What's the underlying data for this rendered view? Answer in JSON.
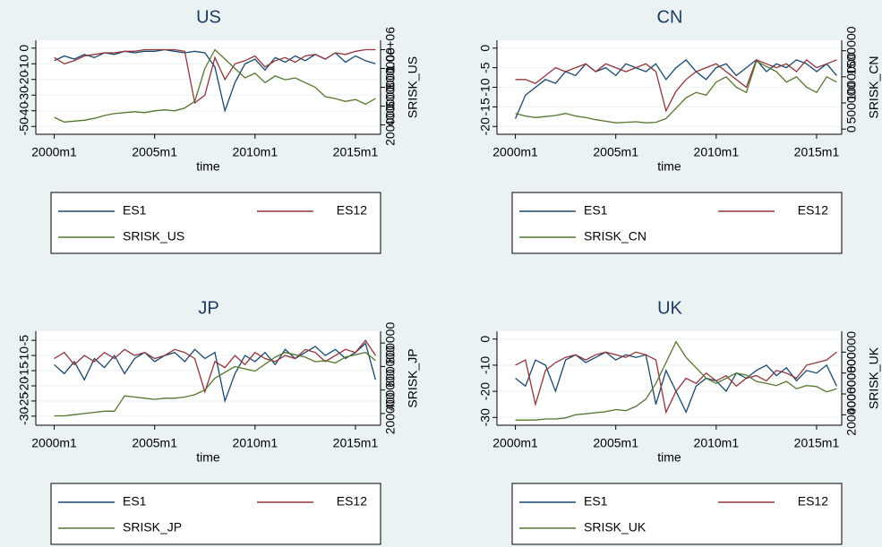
{
  "chart_data": [
    {
      "type": "line",
      "title": "US",
      "xlabel": "time",
      "y2label": "SRISK_US",
      "grid": true,
      "x": [
        "2000m1",
        "2000m7",
        "2001m1",
        "2001m7",
        "2002m1",
        "2002m7",
        "2003m1",
        "2003m7",
        "2004m1",
        "2004m7",
        "2005m1",
        "2005m7",
        "2006m1",
        "2006m7",
        "2007m1",
        "2007m7",
        "2008m1",
        "2008m7",
        "2009m1",
        "2009m7",
        "2010m1",
        "2010m7",
        "2011m1",
        "2011m7",
        "2012m1",
        "2012m7",
        "2013m1",
        "2013m7",
        "2014m1",
        "2014m7",
        "2015m1",
        "2015m7",
        "2016m1"
      ],
      "xticks": [
        "2000m1",
        "2005m1",
        "2010m1",
        "2015m1"
      ],
      "ylim": [
        -55,
        5
      ],
      "yticks": [
        -50,
        -40,
        -30,
        -20,
        -10,
        0
      ],
      "y2lim": [
        100000,
        1100000
      ],
      "y2ticks": [
        200000,
        400000,
        600000,
        800000,
        {
          "value": 1000000,
          "label": "1.0e+06"
        }
      ],
      "series": [
        {
          "name": "ES1",
          "color": "#1a476f",
          "values": [
            -8,
            -5,
            -7,
            -4,
            -6,
            -3,
            -4,
            -2,
            -3,
            -2,
            -2,
            -1,
            -2,
            -3,
            -2,
            -3,
            -12,
            -40,
            -22,
            -10,
            -7,
            -14,
            -6,
            -9,
            -5,
            -8,
            -4,
            -7,
            -3,
            -9,
            -5,
            -8,
            -10
          ]
        },
        {
          "name": "ES12",
          "color": "#90353b",
          "values": [
            -6,
            -10,
            -8,
            -5,
            -4,
            -3,
            -3,
            -2,
            -2,
            -1,
            -1,
            -1,
            -1,
            -2,
            -35,
            -30,
            -6,
            -20,
            -10,
            -8,
            -5,
            -12,
            -8,
            -6,
            -9,
            -5,
            -4,
            -7,
            -3,
            -4,
            -2,
            -1,
            -1
          ]
        },
        {
          "name": "SRISK_US",
          "color": "#55752f",
          "axis": "y2",
          "values": [
            280000,
            230000,
            240000,
            250000,
            270000,
            300000,
            320000,
            330000,
            340000,
            330000,
            350000,
            360000,
            350000,
            380000,
            450000,
            800000,
            1000000,
            900000,
            800000,
            700000,
            750000,
            650000,
            720000,
            680000,
            700000,
            650000,
            600000,
            500000,
            480000,
            450000,
            470000,
            420000,
            480000
          ]
        }
      ]
    },
    {
      "type": "line",
      "title": "CN",
      "xlabel": "time",
      "y2label": "SRISK_CN",
      "grid": true,
      "x": [
        "2000m1",
        "2000m7",
        "2001m1",
        "2001m7",
        "2002m1",
        "2002m7",
        "2003m1",
        "2003m7",
        "2004m1",
        "2004m7",
        "2005m1",
        "2005m7",
        "2006m1",
        "2006m7",
        "2007m1",
        "2007m7",
        "2008m1",
        "2008m7",
        "2009m1",
        "2009m7",
        "2010m1",
        "2010m7",
        "2011m1",
        "2011m7",
        "2012m1",
        "2012m7",
        "2013m1",
        "2013m7",
        "2014m1",
        "2014m7",
        "2015m1",
        "2015m7",
        "2016m1"
      ],
      "xticks": [
        "2000m1",
        "2005m1",
        "2010m1",
        "2015m1"
      ],
      "ylim": [
        -22,
        2
      ],
      "yticks": [
        -20,
        -15,
        -10,
        -5,
        0
      ],
      "y2lim": [
        -100000,
        1700000
      ],
      "y2ticks": [
        0,
        500000,
        1000000,
        1500000
      ],
      "series": [
        {
          "name": "ES1",
          "color": "#1a476f",
          "values": [
            -18,
            -12,
            -10,
            -8,
            -9,
            -6,
            -7,
            -4,
            -6,
            -5,
            -7,
            -4,
            -5,
            -6,
            -4,
            -8,
            -5,
            -3,
            -6,
            -8,
            -5,
            -4,
            -7,
            -5,
            -3,
            -6,
            -4,
            -5,
            -3,
            -4,
            -6,
            -4,
            -7
          ]
        },
        {
          "name": "ES12",
          "color": "#90353b",
          "values": [
            -8,
            -8,
            -9,
            -7,
            -5,
            -6,
            -5,
            -4,
            -6,
            -4,
            -5,
            -6,
            -5,
            -4,
            -6,
            -16,
            -11,
            -8,
            -6,
            -5,
            -4,
            -6,
            -8,
            -10,
            -3,
            -4,
            -5,
            -4,
            -6,
            -3,
            -5,
            -4,
            -3
          ]
        },
        {
          "name": "SRISK_CN",
          "color": "#55752f",
          "axis": "y2",
          "values": [
            300000,
            250000,
            220000,
            240000,
            260000,
            300000,
            250000,
            220000,
            180000,
            150000,
            120000,
            130000,
            140000,
            120000,
            130000,
            200000,
            400000,
            600000,
            700000,
            650000,
            900000,
            1000000,
            800000,
            700000,
            1300000,
            1200000,
            1100000,
            900000,
            1000000,
            800000,
            700000,
            1000000,
            900000
          ]
        }
      ]
    },
    {
      "type": "line",
      "title": "JP",
      "xlabel": "time",
      "y2label": "SRISK_JP",
      "grid": true,
      "x": [
        "2000m1",
        "2000m7",
        "2001m1",
        "2001m7",
        "2002m1",
        "2002m7",
        "2003m1",
        "2003m7",
        "2004m1",
        "2004m7",
        "2005m1",
        "2005m7",
        "2006m1",
        "2006m7",
        "2007m1",
        "2007m7",
        "2008m1",
        "2008m7",
        "2009m1",
        "2009m7",
        "2010m1",
        "2010m7",
        "2011m1",
        "2011m7",
        "2012m1",
        "2012m7",
        "2013m1",
        "2013m7",
        "2014m1",
        "2014m7",
        "2015m1",
        "2015m7",
        "2016m1"
      ],
      "xticks": [
        "2000m1",
        "2005m1",
        "2010m1",
        "2015m1"
      ],
      "ylim": [
        -33,
        -2
      ],
      "yticks": [
        -30,
        -25,
        -20,
        -15,
        -10,
        -5
      ],
      "y2lim": [
        100000,
        900000
      ],
      "y2ticks": [
        200000,
        400000,
        600000,
        800000
      ],
      "series": [
        {
          "name": "ES1",
          "color": "#1a476f",
          "values": [
            -13,
            -16,
            -12,
            -18,
            -11,
            -14,
            -10,
            -16,
            -11,
            -9,
            -12,
            -10,
            -9,
            -12,
            -8,
            -11,
            -9,
            -25,
            -16,
            -10,
            -12,
            -9,
            -13,
            -8,
            -11,
            -9,
            -7,
            -10,
            -8,
            -11,
            -9,
            -6,
            -18
          ]
        },
        {
          "name": "ES12",
          "color": "#90353b",
          "values": [
            -11,
            -9,
            -13,
            -10,
            -12,
            -9,
            -11,
            -8,
            -10,
            -9,
            -11,
            -10,
            -8,
            -9,
            -11,
            -22,
            -12,
            -14,
            -10,
            -13,
            -9,
            -11,
            -12,
            -10,
            -11,
            -8,
            -9,
            -12,
            -10,
            -8,
            -9,
            -5,
            -10
          ]
        },
        {
          "name": "SRISK_JP",
          "color": "#55752f",
          "axis": "y2",
          "values": [
            180000,
            180000,
            190000,
            200000,
            210000,
            220000,
            220000,
            350000,
            340000,
            330000,
            320000,
            330000,
            330000,
            340000,
            360000,
            400000,
            500000,
            550000,
            600000,
            580000,
            560000,
            620000,
            680000,
            720000,
            700000,
            680000,
            640000,
            650000,
            630000,
            680000,
            700000,
            720000,
            650000
          ]
        }
      ]
    },
    {
      "type": "line",
      "title": "UK",
      "xlabel": "time",
      "y2label": "SRISK_UK",
      "grid": true,
      "x": [
        "2000m1",
        "2000m7",
        "2001m1",
        "2001m7",
        "2002m1",
        "2002m7",
        "2003m1",
        "2003m7",
        "2004m1",
        "2004m7",
        "2005m1",
        "2005m7",
        "2006m1",
        "2006m7",
        "2007m1",
        "2007m7",
        "2008m1",
        "2008m7",
        "2009m1",
        "2009m7",
        "2010m1",
        "2010m7",
        "2011m1",
        "2011m7",
        "2012m1",
        "2012m7",
        "2013m1",
        "2013m7",
        "2014m1",
        "2014m7",
        "2015m1",
        "2015m7",
        "2016m1"
      ],
      "xticks": [
        "2000m1",
        "2005m1",
        "2010m1",
        "2015m1"
      ],
      "ylim": [
        -33,
        3
      ],
      "yticks": [
        -30,
        -20,
        -10,
        0
      ],
      "y2lim": [
        100000,
        1000000
      ],
      "y2ticks": [
        200000,
        400000,
        600000,
        800000
      ],
      "series": [
        {
          "name": "ES1",
          "color": "#1a476f",
          "values": [
            -15,
            -18,
            -8,
            -10,
            -20,
            -8,
            -6,
            -9,
            -7,
            -5,
            -8,
            -6,
            -7,
            -6,
            -25,
            -12,
            -20,
            -28,
            -18,
            -15,
            -16,
            -20,
            -13,
            -15,
            -12,
            -10,
            -14,
            -11,
            -16,
            -12,
            -13,
            -10,
            -18
          ]
        },
        {
          "name": "ES12",
          "color": "#90353b",
          "values": [
            -10,
            -8,
            -25,
            -12,
            -9,
            -7,
            -6,
            -8,
            -6,
            -5,
            -6,
            -7,
            -5,
            -6,
            -8,
            -28,
            -20,
            -15,
            -17,
            -13,
            -16,
            -14,
            -18,
            -15,
            -14,
            -16,
            -12,
            -13,
            -15,
            -10,
            -9,
            -8,
            -5
          ]
        },
        {
          "name": "SRISK_UK",
          "color": "#55752f",
          "axis": "y2",
          "values": [
            150000,
            150000,
            150000,
            160000,
            160000,
            170000,
            200000,
            210000,
            220000,
            230000,
            250000,
            240000,
            280000,
            350000,
            500000,
            700000,
            900000,
            750000,
            650000,
            550000,
            500000,
            550000,
            600000,
            580000,
            520000,
            500000,
            480000,
            520000,
            450000,
            480000,
            470000,
            420000,
            450000
          ]
        }
      ]
    }
  ]
}
